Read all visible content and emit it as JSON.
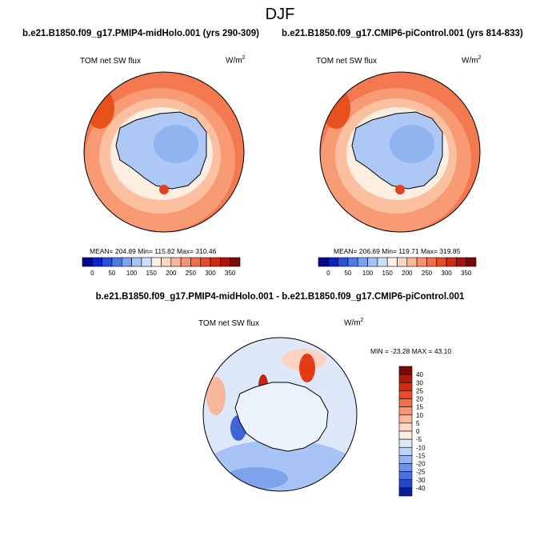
{
  "page": {
    "title": "DJF",
    "subtitle_left": "b.e21.B1850.f09_g17.PMIP4-midHolo.001 (yrs 290-309)",
    "subtitle_right": "b.e21.B1850.f09_g17.CMIP6-piControl.001 (yrs 814-833)",
    "diff_title": "b.e21.B1850.f09_g17.PMIP4-midHolo.001 - b.e21.B1850.f09_g17.CMIP6-piControl.001"
  },
  "panels": {
    "left": {
      "variable": "TOM net SW flux",
      "units": "W/m",
      "units_sup": "2",
      "stats": "MEAN= 204.89  Min= 115.82  Max= 310.46"
    },
    "right": {
      "variable": "TOM net SW flux",
      "units": "W/m",
      "units_sup": "2",
      "stats": "MEAN= 206.69  Min= 119.71  Max= 319.85"
    },
    "diff": {
      "variable": "TOM net SW flux",
      "units": "W/m",
      "units_sup": "2",
      "stats": "MIN = -23.28 MAX =  43.10"
    }
  },
  "chart_data": [
    {
      "type": "heatmap",
      "projection": "south-polar-stereographic",
      "case": "b.e21.B1850.f09_g17.PMIP4-midHolo.001 (yrs 290-309)",
      "variable": "TOM net SW flux",
      "units": "W/m2",
      "mean": 204.89,
      "min": 115.82,
      "max": 310.46,
      "colorbar": {
        "orientation": "horizontal",
        "tick_labels": [
          "0",
          "50",
          "100",
          "150",
          "200",
          "250",
          "300",
          "350"
        ],
        "colors": [
          "#08088f",
          "#0a22c8",
          "#2a52d8",
          "#4f7ae8",
          "#7aa2f0",
          "#a6c4f6",
          "#cde0fb",
          "#fdf0e6",
          "#fcd6bf",
          "#fbb696",
          "#f89370",
          "#f0704b",
          "#e64a28",
          "#cf2a12",
          "#a8150a",
          "#7a0a05"
        ]
      },
      "approx_levels": {
        "ocean_north": 305,
        "ocean_mid": 240,
        "sea_ice_zone": 195,
        "antarctic_interior": 130
      }
    },
    {
      "type": "heatmap",
      "projection": "south-polar-stereographic",
      "case": "b.e21.B1850.f09_g17.CMIP6-piControl.001 (yrs 814-833)",
      "variable": "TOM net SW flux",
      "units": "W/m2",
      "mean": 206.69,
      "min": 119.71,
      "max": 319.85,
      "colorbar": {
        "orientation": "horizontal",
        "tick_labels": [
          "0",
          "50",
          "100",
          "150",
          "200",
          "250",
          "300",
          "350"
        ],
        "colors": [
          "#08088f",
          "#0a22c8",
          "#2a52d8",
          "#4f7ae8",
          "#7aa2f0",
          "#a6c4f6",
          "#cde0fb",
          "#fdf0e6",
          "#fcd6bf",
          "#fbb696",
          "#f89370",
          "#f0704b",
          "#e64a28",
          "#cf2a12",
          "#a8150a",
          "#7a0a05"
        ]
      },
      "approx_levels": {
        "ocean_north": 310,
        "ocean_mid": 245,
        "sea_ice_zone": 200,
        "antarctic_interior": 135
      }
    },
    {
      "type": "heatmap",
      "projection": "south-polar-stereographic",
      "case": "b.e21.B1850.f09_g17.PMIP4-midHolo.001 - b.e21.B1850.f09_g17.CMIP6-piControl.001",
      "variable": "TOM net SW flux",
      "units": "W/m2",
      "min": -23.28,
      "max": 43.1,
      "colorbar": {
        "orientation": "vertical",
        "tick_labels": [
          "40",
          "30",
          "25",
          "20",
          "15",
          "10",
          "5",
          "0",
          "-5",
          "-10",
          "-15",
          "-20",
          "-25",
          "-30",
          "-40"
        ],
        "colors": [
          "#7a0a05",
          "#b01808",
          "#d82a10",
          "#ee4a22",
          "#f47048",
          "#f89672",
          "#fbb89c",
          "#fdd9c6",
          "#fdf0e6",
          "#dde9fb",
          "#bcd3f8",
          "#96b6f3",
          "#6f93ea",
          "#4a6fde",
          "#2646cc",
          "#0a1c9e"
        ]
      },
      "approx_levels": {
        "interior": -2,
        "southern_ocean_atlantic": -12,
        "weddell_sector_peak": 40,
        "pacific_north": 4
      }
    }
  ]
}
